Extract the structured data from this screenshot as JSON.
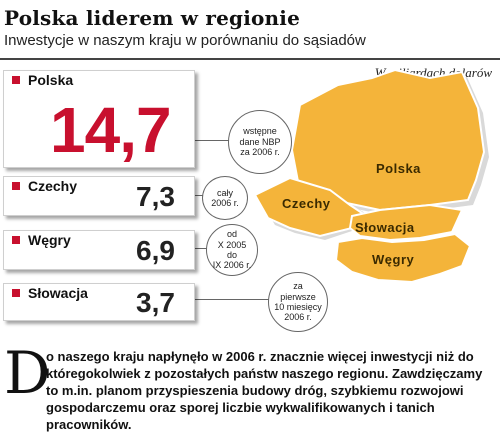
{
  "header": {
    "title": "Polska liderem w regionie",
    "subtitle": "Inwestycje w naszym kraju w porównaniu do sąsiadów",
    "unit": "W miliardach dolarów"
  },
  "chart_data": {
    "type": "table",
    "title": "Polska liderem w regionie",
    "subtitle": "Inwestycje w naszym kraju w porównaniu do sąsiadów",
    "unit": "W miliardach dolarów",
    "categories": [
      "Polska",
      "Czechy",
      "Węgry",
      "Słowacja"
    ],
    "values": [
      14.7,
      7.3,
      6.9,
      3.7
    ],
    "value_labels": [
      "14,7",
      "7,3",
      "6,9",
      "3,7"
    ],
    "notes": [
      "wstępne\ndane NBP\nza 2006 r.",
      "cały\n2006 r.",
      "od\nX 2005\ndo\nIX 2006 r.",
      "za\npierwsze\n10 miesięcy\n2006 r."
    ],
    "map_labels": [
      "Polska",
      "Czechy",
      "Słowacja",
      "Węgry"
    ]
  },
  "colors": {
    "accent": "#c8102e",
    "map_fill": "#f4b43a",
    "map_shadow": "#d7d7d7"
  },
  "article": {
    "dropcap": "D",
    "text": "o naszego kraju napłynęło w 2006 r. znacznie więcej inwestycji niż do któregokolwiek z pozostałych państw naszego regionu. Zawdzięczamy to m.in. planom przyspieszenia budowy dróg, szybkiemu rozwojowi gospodarczemu oraz sporej liczbie wykwalifikowanych i tanich pracowników."
  }
}
